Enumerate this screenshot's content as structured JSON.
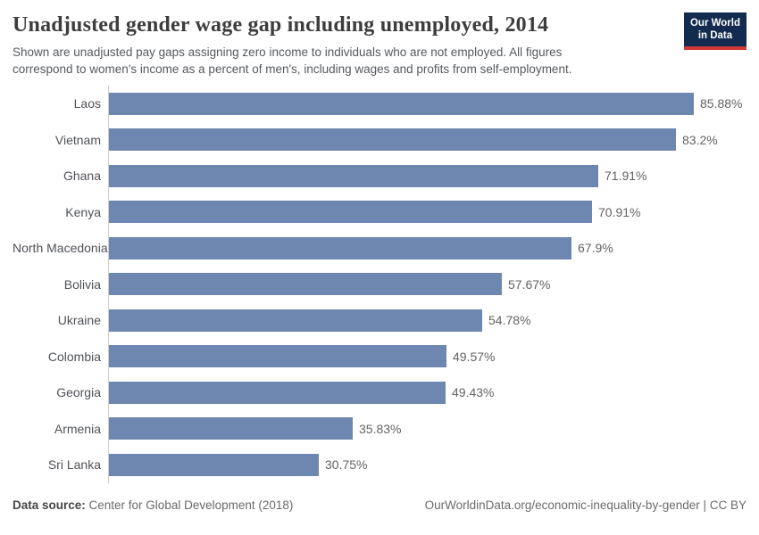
{
  "header": {
    "title": "Unadjusted gender wage gap including unemployed, 2014",
    "subtitle": "Shown are unadjusted pay gaps assigning zero income to individuals who are not employed. All figures\ncorrespond to women's income as a percent of men's, including wages and profits from self-employment.",
    "logo": {
      "line1": "Our World",
      "line2": "in Data"
    }
  },
  "chart_data": {
    "type": "bar",
    "orientation": "horizontal",
    "title": "Unadjusted gender wage gap including unemployed, 2014",
    "xlabel": "",
    "ylabel": "",
    "xlim": [
      0,
      85.88
    ],
    "grid": false,
    "legend": false,
    "bar_color": "#6e87b0",
    "axis_color": "#cfcfcf",
    "categories": [
      "Laos",
      "Vietnam",
      "Ghana",
      "Kenya",
      "North Macedonia",
      "Bolivia",
      "Ukraine",
      "Colombia",
      "Georgia",
      "Armenia",
      "Sri Lanka"
    ],
    "values": [
      85.88,
      83.2,
      71.91,
      70.91,
      67.9,
      57.67,
      54.78,
      49.57,
      49.43,
      35.83,
      30.75
    ],
    "value_labels": [
      "85.88%",
      "83.2%",
      "71.91%",
      "70.91%",
      "67.9%",
      "57.67%",
      "54.78%",
      "49.57%",
      "49.43%",
      "35.83%",
      "30.75%"
    ]
  },
  "footer": {
    "source_label": "Data source:",
    "source_value": " Center for Global Development (2018)",
    "credit": "OurWorldinData.org/economic-inequality-by-gender | CC BY"
  }
}
